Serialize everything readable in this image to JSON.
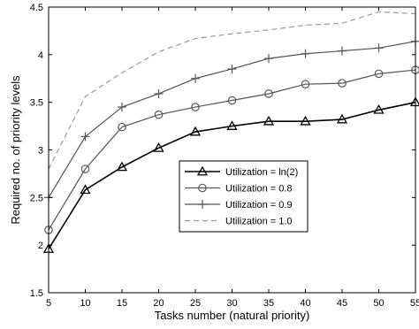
{
  "chart_data": {
    "type": "line",
    "title": "",
    "xlabel": "Tasks number (natural priority)",
    "ylabel": "Required no. of priority levels",
    "x": [
      5,
      10,
      15,
      20,
      25,
      30,
      35,
      40,
      45,
      50,
      55
    ],
    "xlim": [
      5,
      55
    ],
    "ylim": [
      1.5,
      4.5
    ],
    "xticks": [
      "5",
      "10",
      "15",
      "20",
      "25",
      "30",
      "35",
      "40",
      "45",
      "50",
      "55"
    ],
    "yticks": [
      "1.5",
      "2",
      "2.5",
      "3",
      "3.5",
      "4",
      "4.5"
    ],
    "grid": false,
    "legend_position": "center-right",
    "series": [
      {
        "name": "Utilization = ln(2)",
        "values": [
          1.96,
          2.58,
          2.82,
          3.02,
          3.19,
          3.25,
          3.3,
          3.3,
          3.32,
          3.42,
          3.5
        ],
        "color": "#000000",
        "marker": "triangle",
        "dash": "solid",
        "stroke_weight": "heavy"
      },
      {
        "name": "Utilization = 0.8",
        "values": [
          2.16,
          2.8,
          3.24,
          3.37,
          3.45,
          3.52,
          3.59,
          3.69,
          3.7,
          3.8,
          3.84
        ],
        "color": "#555555",
        "marker": "circle",
        "dash": "solid",
        "stroke_weight": "medium"
      },
      {
        "name": "Utilization = 0.9",
        "values": [
          2.5,
          3.14,
          3.45,
          3.59,
          3.75,
          3.85,
          3.96,
          4.01,
          4.04,
          4.07,
          4.14
        ],
        "color": "#555555",
        "marker": "plus",
        "dash": "solid",
        "stroke_weight": "medium"
      },
      {
        "name": "Utilization = 1.0",
        "values": [
          2.8,
          3.56,
          3.81,
          4.03,
          4.17,
          4.22,
          4.26,
          4.31,
          4.33,
          4.45,
          4.43
        ],
        "color": "#999999",
        "marker": "none",
        "dash": "dashed",
        "stroke_weight": "medium"
      }
    ]
  }
}
